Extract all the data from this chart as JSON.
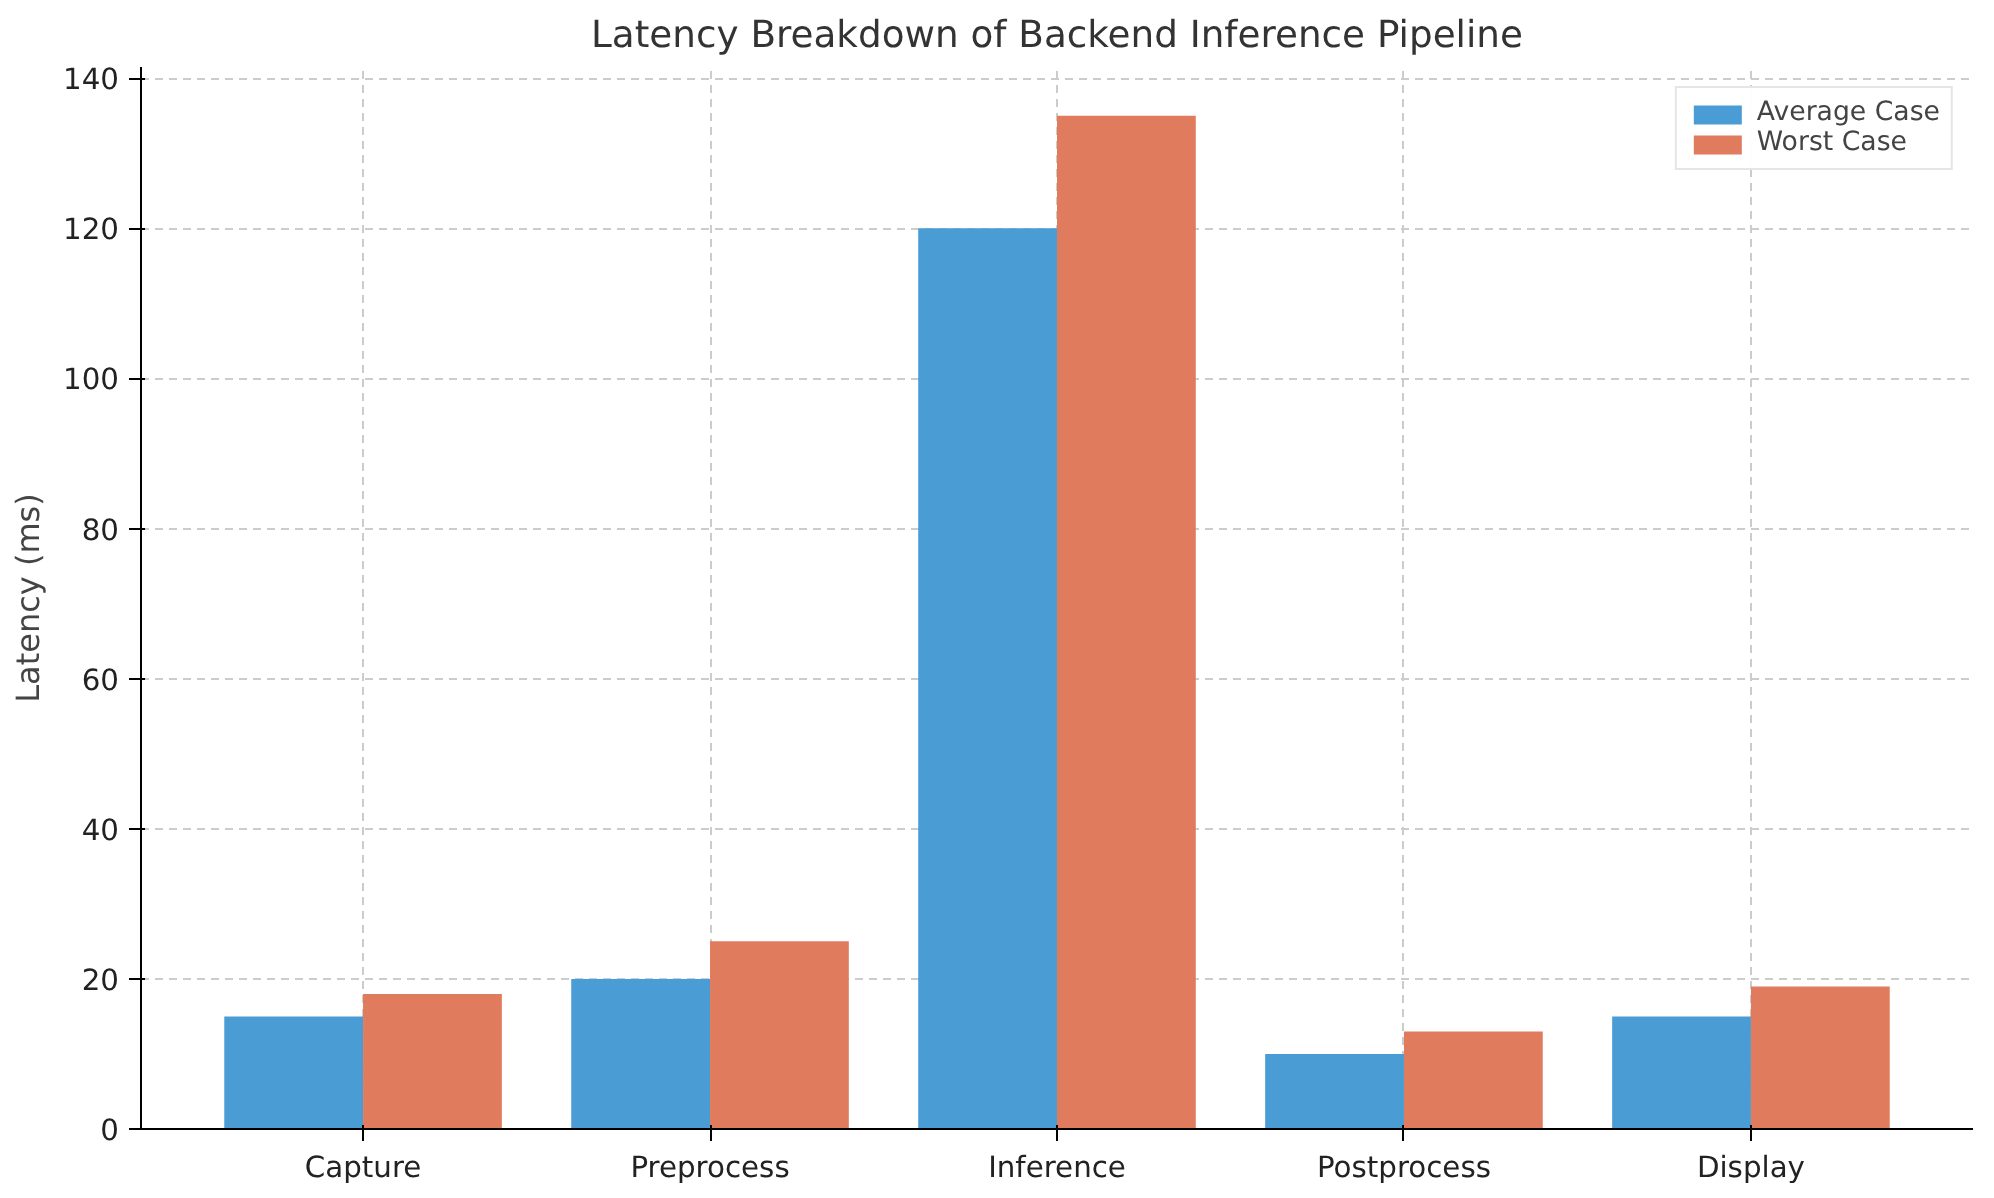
{
  "chart_data": {
    "type": "bar",
    "title": "Latency Breakdown of Backend Inference Pipeline",
    "ylabel": "Latency (ms)",
    "categories": [
      "Capture",
      "Preprocess",
      "Inference",
      "Postprocess",
      "Display"
    ],
    "series": [
      {
        "name": "Average Case",
        "color": "#4a9cd5",
        "values": [
          15,
          20,
          120,
          10,
          15
        ]
      },
      {
        "name": "Worst Case",
        "color": "#e07b5e",
        "values": [
          18,
          25,
          135,
          13,
          19
        ]
      }
    ],
    "ylim": [
      0,
      141.5
    ],
    "yticks": [
      0,
      20,
      40,
      60,
      80,
      100,
      120,
      140
    ],
    "grid": true,
    "legend": "top right"
  }
}
